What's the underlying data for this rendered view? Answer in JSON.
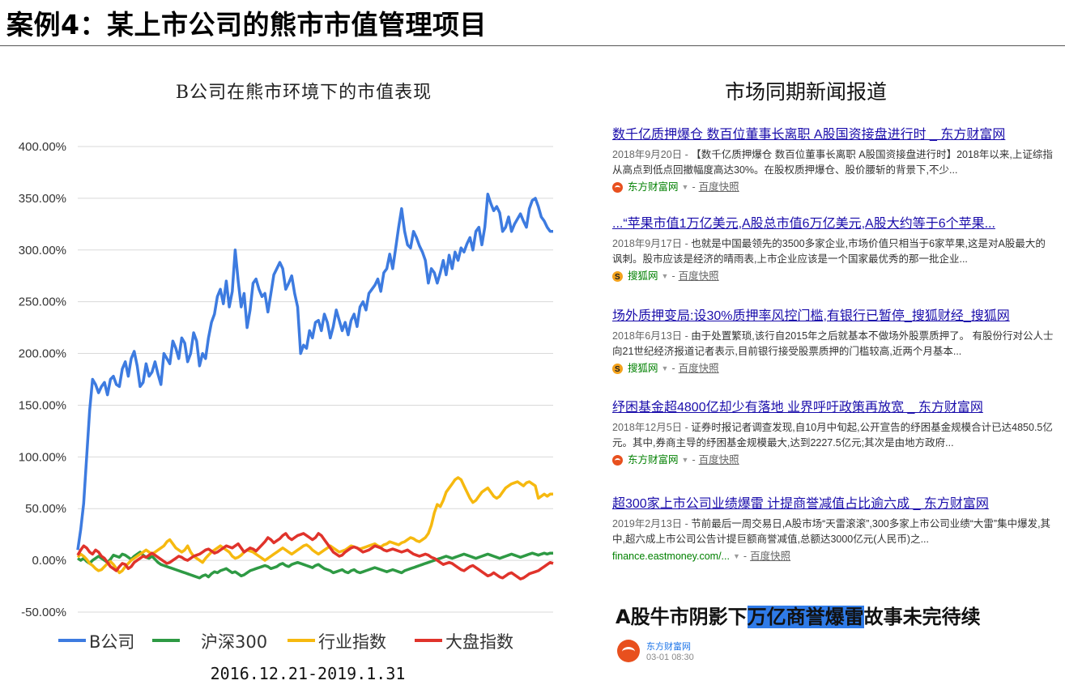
{
  "page_title": "案例4：某上市公司的熊市市值管理项目",
  "chart_title": "B公司在熊市环境下的市值表现",
  "chart_caption": "2016.12.21-2019.1.31",
  "news_title": "市场同期新闻报道",
  "news": [
    {
      "headline": "数千亿质押爆仓 数百位董事长离职 A股国资接盘进行时 _ 东方财富网",
      "date": "2018年9月20日 - ",
      "snippet": "【数千亿质押爆仓 数百位董事长离职 A股国资接盘进行时】2018年以来,上证综指从高点到低点回撤幅度高达30%。在股权质押爆仓、股价腰斩的背景下,不少...",
      "source": "东方财富网",
      "source_icon": "eastmoney-icon",
      "snapshot": "百度快照"
    },
    {
      "headline": "...“苹果市值1万亿美元,A股总市值6万亿美元,A股大约等于6个苹果...",
      "date": "2018年9月17日 - ",
      "snippet": "也就是中国最领先的3500多家企业,市场价值只相当于6家苹果,这是对A股最大的讽刺。股市应该是经济的晴雨表,上市企业应该是一个国家最优秀的那一批企业...",
      "source": "搜狐网",
      "source_icon": "sohu-icon",
      "snapshot": "百度快照"
    },
    {
      "headline": "场外质押变局:设30%质押率风控门槛,有银行已暂停_搜狐财经_搜狐网",
      "date": "2018年6月13日 - ",
      "snippet": "由于处置繁琐,该行自2015年之后就基本不做场外股票质押了。 有股份行对公人士向21世纪经济报道记者表示,目前银行接受股票质押的门槛较高,近两个月基本...",
      "source": "搜狐网",
      "source_icon": "sohu-icon",
      "snapshot": "百度快照"
    },
    {
      "headline": "纾困基金超4800亿却少有落地 业界呼吁政策再放宽 _ 东方财富网",
      "date": "2018年12月5日 - ",
      "snippet": "证券时报记者调查发现,自10月中旬起,公开宣告的纾困基金规模合计已达4850.5亿元。其中,券商主导的纾困基金规模最大,达到2227.5亿元;其次是由地方政府...",
      "source": "东方财富网",
      "source_icon": "eastmoney-icon",
      "snapshot": "百度快照"
    },
    {
      "headline": "超300家上市公司业绩爆雷 计提商誉减值占比逾六成 _ 东方财富网",
      "date": "2019年2月13日 - ",
      "snippet": "节前最后一周交易日,A股市场“天雷滚滚”,300多家上市公司业绩“大雷”集中爆发,其中,超六成上市公司公告计提巨额商誉减值,总额达3000亿元(人民币)之...",
      "source": "finance.eastmoney.com/...",
      "source_icon": "",
      "snapshot": "百度快照"
    }
  ],
  "bottom_headline": {
    "before": "A股牛市阴影下",
    "highlight": "万亿商誉爆雷",
    "after": "故事未完待续"
  },
  "bottom_source": "东方财富网",
  "bottom_time": "03-01  08:30",
  "colors": {
    "b_company": "#3d7be0",
    "hs300": "#2e9a44",
    "industry": "#f6b90f",
    "market": "#e0332b"
  },
  "chart_data": {
    "type": "line",
    "title": "B公司在熊市环境下的市值表现",
    "xlabel": "2016.12.21-2019.1.31",
    "ylabel": "",
    "ylim": [
      -50,
      400
    ],
    "yticks": [
      "400.00%",
      "350.00%",
      "300.00%",
      "250.00%",
      "200.00%",
      "150.00%",
      "100.00%",
      "50.00%",
      "0.00%",
      "-50.00%"
    ],
    "ytick_values": [
      400,
      350,
      300,
      250,
      200,
      150,
      100,
      50,
      0,
      -50
    ],
    "grid": true,
    "legend_position": "bottom",
    "x": [
      0,
      1,
      2,
      3,
      4,
      5,
      6,
      7,
      8,
      9,
      10,
      11,
      12,
      13,
      14,
      15,
      16,
      17,
      18,
      19,
      20,
      21,
      22,
      23,
      24,
      25,
      26,
      27,
      28,
      29,
      30,
      31,
      32,
      33,
      34,
      35,
      36,
      37,
      38,
      39,
      40,
      41,
      42,
      43,
      44,
      45,
      46,
      47,
      48,
      49,
      50,
      51,
      52,
      53,
      54,
      55,
      56,
      57,
      58,
      59,
      60,
      61,
      62,
      63,
      64,
      65,
      66,
      67,
      68,
      69,
      70,
      71,
      72,
      73,
      74,
      75,
      76,
      77,
      78,
      79,
      80,
      81,
      82,
      83,
      84,
      85,
      86,
      87,
      88,
      89,
      90,
      91,
      92,
      93,
      94,
      95,
      96,
      97,
      98,
      99,
      100,
      101,
      102,
      103,
      104,
      105,
      106,
      107,
      108,
      109,
      110,
      111,
      112,
      113,
      114,
      115,
      116,
      117,
      118,
      119,
      120,
      121,
      122,
      123,
      124,
      125,
      126,
      127,
      128,
      129,
      130,
      131,
      132,
      133,
      134,
      135,
      136,
      137,
      138,
      139,
      140,
      141,
      142,
      143,
      144,
      145,
      146,
      147,
      148,
      149,
      150,
      151,
      152,
      153,
      154,
      155,
      156,
      157,
      158,
      159,
      160
    ],
    "series": [
      {
        "name": "B公司",
        "color": "#3d7be0",
        "values": [
          10,
          30,
          55,
          100,
          145,
          175,
          170,
          162,
          168,
          172,
          160,
          175,
          178,
          170,
          168,
          185,
          192,
          178,
          195,
          202,
          188,
          168,
          172,
          190,
          178,
          182,
          192,
          180,
          170,
          200,
          195,
          190,
          212,
          205,
          195,
          215,
          210,
          192,
          200,
          220,
          212,
          188,
          200,
          195,
          215,
          230,
          238,
          255,
          262,
          248,
          270,
          245,
          260,
          300,
          270,
          245,
          258,
          225,
          242,
          268,
          272,
          262,
          255,
          258,
          240,
          258,
          276,
          282,
          288,
          282,
          262,
          268,
          275,
          258,
          245,
          200,
          208,
          205,
          222,
          215,
          230,
          232,
          222,
          238,
          230,
          215,
          226,
          242,
          232,
          222,
          230,
          218,
          232,
          238,
          226,
          245,
          250,
          242,
          258,
          262,
          266,
          272,
          260,
          278,
          282,
          296,
          282,
          302,
          322,
          340,
          318,
          305,
          302,
          318,
          312,
          304,
          298,
          290,
          268,
          282,
          278,
          268,
          278,
          290,
          276,
          295,
          282,
          298,
          290,
          302,
          298,
          306,
          312,
          300,
          318,
          322,
          305,
          322,
          354,
          345,
          338,
          342,
          336,
          318,
          322,
          332,
          318,
          325,
          330,
          335,
          328,
          322,
          340,
          348,
          350,
          342,
          332,
          328,
          322,
          318,
          318
        ]
      },
      {
        "name": "沪深300",
        "color": "#2e9a44",
        "values": [
          2,
          0,
          2,
          -1,
          -3,
          0,
          2,
          4,
          2,
          0,
          -2,
          1,
          5,
          4,
          3,
          6,
          5,
          3,
          1,
          4,
          6,
          8,
          5,
          3,
          2,
          4,
          1,
          -2,
          -4,
          -5,
          -6,
          -7,
          -8,
          -9,
          -10,
          -11,
          -12,
          -13,
          -14,
          -15,
          -16,
          -17,
          -15,
          -14,
          -16,
          -13,
          -11,
          -12,
          -10,
          -9,
          -8,
          -10,
          -12,
          -11,
          -13,
          -15,
          -14,
          -12,
          -10,
          -9,
          -8,
          -7,
          -6,
          -5,
          -6,
          -8,
          -7,
          -6,
          -4,
          -3,
          -5,
          -6,
          -4,
          -3,
          -2,
          -3,
          -4,
          -5,
          -6,
          -7,
          -5,
          -4,
          -6,
          -8,
          -9,
          -10,
          -12,
          -11,
          -10,
          -9,
          -11,
          -12,
          -10,
          -9,
          -11,
          -12,
          -11,
          -10,
          -9,
          -8,
          -7,
          -8,
          -9,
          -10,
          -11,
          -10,
          -9,
          -10,
          -11,
          -12,
          -10,
          -9,
          -8,
          -7,
          -6,
          -5,
          -4,
          -3,
          -2,
          -1,
          0,
          1,
          2,
          3,
          4,
          3,
          2,
          3,
          4,
          5,
          6,
          5,
          4,
          3,
          2,
          3,
          4,
          5,
          6,
          5,
          4,
          3,
          2,
          3,
          4,
          5,
          6,
          5,
          4,
          3,
          4,
          5,
          6,
          7,
          6,
          5,
          6,
          7,
          6,
          7,
          7
        ]
      },
      {
        "name": "行业指数",
        "color": "#f6b90f",
        "values": [
          3,
          6,
          4,
          1,
          -3,
          -5,
          -8,
          -10,
          -9,
          -6,
          -3,
          -1,
          -4,
          -8,
          -12,
          -10,
          -6,
          -3,
          0,
          2,
          4,
          6,
          8,
          10,
          8,
          6,
          8,
          10,
          12,
          14,
          18,
          20,
          16,
          12,
          10,
          8,
          10,
          14,
          8,
          4,
          2,
          0,
          -2,
          2,
          5,
          8,
          10,
          12,
          14,
          12,
          10,
          8,
          4,
          2,
          3,
          5,
          8,
          10,
          9,
          8,
          6,
          4,
          2,
          0,
          2,
          4,
          6,
          8,
          10,
          12,
          10,
          8,
          6,
          8,
          10,
          12,
          14,
          15,
          13,
          10,
          8,
          6,
          8,
          10,
          12,
          14,
          12,
          10,
          8,
          9,
          10,
          12,
          14,
          13,
          12,
          11,
          12,
          13,
          14,
          15,
          16,
          14,
          13,
          15,
          16,
          18,
          17,
          16,
          15,
          17,
          18,
          20,
          22,
          21,
          19,
          18,
          20,
          22,
          26,
          34,
          46,
          54,
          52,
          58,
          66,
          70,
          74,
          78,
          80,
          78,
          72,
          66,
          60,
          56,
          58,
          62,
          66,
          68,
          70,
          66,
          62,
          60,
          62,
          66,
          70,
          72,
          74,
          75,
          76,
          74,
          72,
          75,
          76,
          74,
          72,
          60,
          62,
          64,
          62,
          64,
          64
        ]
      },
      {
        "name": "大盘指数",
        "color": "#e0332b",
        "values": [
          5,
          10,
          14,
          12,
          8,
          6,
          10,
          8,
          4,
          2,
          -2,
          -6,
          -8,
          -10,
          -6,
          -3,
          -4,
          -8,
          -6,
          -2,
          0,
          2,
          4,
          3,
          5,
          7,
          5,
          3,
          1,
          -1,
          -3,
          -2,
          0,
          2,
          4,
          3,
          1,
          0,
          2,
          4,
          5,
          6,
          8,
          10,
          11,
          9,
          7,
          8,
          10,
          12,
          14,
          13,
          12,
          14,
          16,
          12,
          8,
          10,
          12,
          11,
          9,
          12,
          15,
          18,
          22,
          20,
          17,
          19,
          21,
          24,
          26,
          22,
          20,
          22,
          24,
          25,
          26,
          24,
          22,
          20,
          22,
          26,
          24,
          20,
          16,
          12,
          8,
          6,
          4,
          5,
          8,
          10,
          12,
          13,
          12,
          10,
          8,
          9,
          10,
          12,
          14,
          13,
          12,
          10,
          9,
          10,
          11,
          10,
          9,
          8,
          9,
          10,
          8,
          6,
          5,
          4,
          5,
          6,
          5,
          3,
          2,
          0,
          -2,
          -4,
          -3,
          -2,
          -3,
          -5,
          -7,
          -9,
          -10,
          -8,
          -6,
          -5,
          -7,
          -9,
          -11,
          -13,
          -15,
          -14,
          -12,
          -14,
          -16,
          -17,
          -15,
          -13,
          -12,
          -14,
          -16,
          -18,
          -17,
          -15,
          -13,
          -12,
          -11,
          -10,
          -8,
          -6,
          -4,
          -2,
          -3
        ]
      }
    ]
  }
}
